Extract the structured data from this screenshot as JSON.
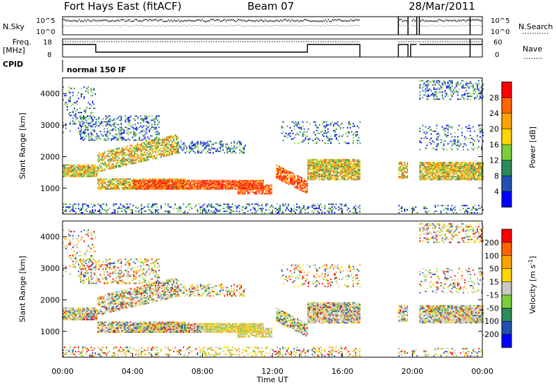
{
  "header": {
    "station": "Fort Hays East (fitACF)",
    "beam": "Beam 07",
    "date": "28/Mar/2011"
  },
  "side_labels": {
    "nsky": "N.Sky",
    "freq": "Freq.",
    "freq_unit": "[MHz]",
    "cpid": "CPID",
    "nsearch": "N.Search",
    "nave": "Nave"
  },
  "nsky_ticks": [
    "10^5",
    "10^0"
  ],
  "nsearch_ticks": [
    "10^5",
    "10^0"
  ],
  "freq_ticks": [
    "18",
    "8"
  ],
  "nave_ticks": [
    "60",
    "0"
  ],
  "cpid_text": "normal 150 IF",
  "x_axis": {
    "label": "Time UT",
    "ticks": [
      "00:00",
      "04:00",
      "08:00",
      "12:00",
      "16:00",
      "20:00",
      "00:00"
    ]
  },
  "chart_data": [
    {
      "type": "heatmap",
      "name": "power",
      "ylabel": "Slant Range [km]",
      "y_ticks": [
        "1000",
        "2000",
        "3000",
        "4000"
      ],
      "ylim": [
        180,
        4500
      ],
      "xlim": [
        0,
        24
      ],
      "colorbar": {
        "label": "Power [dB]",
        "ticks": [
          "4",
          "8",
          "12",
          "16",
          "20",
          "24",
          "28"
        ],
        "colors": [
          "#0000ff",
          "#2050b0",
          "#2e8b57",
          "#7ccd3a",
          "#ffd700",
          "#ffa500",
          "#ff6600",
          "#ff0000"
        ]
      }
    },
    {
      "type": "heatmap",
      "name": "velocity",
      "ylabel": "Slant Range [km]",
      "y_ticks": [
        "1000",
        "2000",
        "3000",
        "4000"
      ],
      "ylim": [
        180,
        4500
      ],
      "xlim": [
        0,
        24
      ],
      "colorbar": {
        "label": "Velocity [m s",
        "label_sup": "-1",
        "label_end": "]",
        "ticks": [
          "200",
          "100",
          "50",
          "15",
          "-15",
          "-50",
          "-100",
          "-200"
        ],
        "colors": [
          "#0000ff",
          "#2050b0",
          "#2e8b57",
          "#7ccd3a",
          "#c8c8c0",
          "#ffd700",
          "#ffa500",
          "#ff6600",
          "#ff0000"
        ]
      }
    }
  ]
}
